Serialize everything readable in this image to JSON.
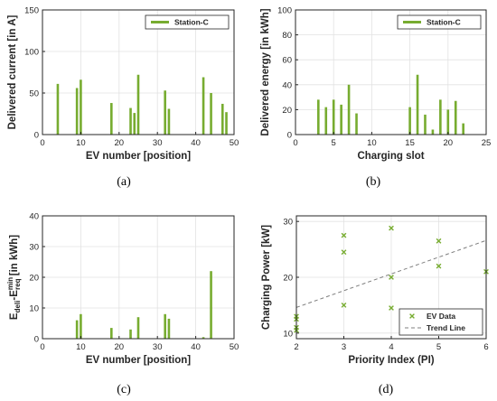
{
  "colors": {
    "series": "#77ac30",
    "trend": "#7f7f7f"
  },
  "chart_data": [
    {
      "type": "bar",
      "caption": "(a)",
      "xlabel": "EV number [position]",
      "ylabel": "Delivered current [in A]",
      "xlim": [
        0,
        50
      ],
      "ylim": [
        0,
        150
      ],
      "xticks": [
        0,
        10,
        20,
        30,
        40,
        50
      ],
      "yticks": [
        0,
        50,
        100,
        150
      ],
      "grid": true,
      "legend_position": "top-right",
      "series": [
        {
          "name": "Station-C",
          "x": [
            4,
            9,
            10,
            18,
            23,
            24,
            25,
            32,
            33,
            42,
            44,
            47,
            48
          ],
          "values": [
            61,
            56,
            66,
            38,
            32,
            26,
            72,
            53,
            31,
            69,
            50,
            37,
            27
          ]
        }
      ]
    },
    {
      "type": "bar",
      "caption": "(b)",
      "xlabel": "Charging slot",
      "ylabel": "Delivered energy [in kWh]",
      "xlim": [
        0,
        25
      ],
      "ylim": [
        0,
        100
      ],
      "xticks": [
        0,
        5,
        10,
        15,
        20,
        25
      ],
      "yticks": [
        0,
        20,
        40,
        60,
        80,
        100
      ],
      "grid": true,
      "legend_position": "top-right",
      "series": [
        {
          "name": "Station-C",
          "x": [
            3,
            4,
            5,
            6,
            7,
            8,
            15,
            16,
            17,
            18,
            19,
            20,
            21,
            22
          ],
          "values": [
            28,
            22,
            28,
            24,
            40,
            17,
            22,
            48,
            16,
            4,
            28,
            20,
            27,
            9
          ]
        }
      ]
    },
    {
      "type": "bar",
      "caption": "(c)",
      "xlabel": "EV number [position]",
      "ylabel_main": "E",
      "ylabel_sub1": "deli",
      "ylabel_mid": "-E",
      "ylabel_sup2": "min",
      "ylabel_sub2": "req",
      "ylabel_unit": " [in kWh]",
      "xlim": [
        0,
        50
      ],
      "ylim": [
        0,
        40
      ],
      "xticks": [
        0,
        10,
        20,
        30,
        40,
        50
      ],
      "yticks": [
        0,
        10,
        20,
        30,
        40
      ],
      "grid": true,
      "series": [
        {
          "x": [
            9,
            10,
            18,
            23,
            25,
            32,
            33,
            42,
            44
          ],
          "values": [
            6,
            8,
            3.5,
            3,
            7,
            8,
            6.5,
            0.5,
            22
          ]
        }
      ]
    },
    {
      "type": "scatter",
      "caption": "(d)",
      "xlabel": "Priority Index (PI)",
      "ylabel": "Charging Power [kW]",
      "xlim": [
        2,
        6
      ],
      "ylim": [
        9,
        31
      ],
      "xticks": [
        2,
        3,
        4,
        5,
        6
      ],
      "yticks": [
        10,
        20,
        30
      ],
      "grid": true,
      "legend_position": "bottom-right",
      "series": [
        {
          "name": "EV Data",
          "x": [
            2,
            2,
            2,
            2,
            3,
            3,
            3,
            4,
            4,
            4,
            5,
            5,
            6
          ],
          "y": [
            10.5,
            11,
            12.5,
            13,
            15,
            24.5,
            27.5,
            14.5,
            20,
            28.8,
            22,
            26.5,
            21
          ]
        }
      ],
      "trend": {
        "name": "Trend Line",
        "x": [
          2,
          6
        ],
        "y": [
          14.6,
          26.6
        ]
      }
    }
  ]
}
